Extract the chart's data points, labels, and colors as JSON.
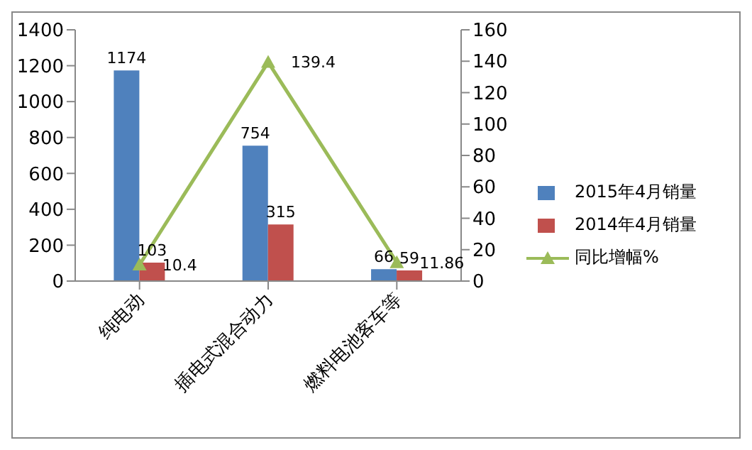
{
  "chart_data": {
    "type": "bar",
    "categories": [
      "纯电动",
      "插电式混合动力",
      "燃料电池客车等"
    ],
    "series": [
      {
        "name": "2015年4月销量",
        "color": "#4f81bd",
        "values": [
          1174,
          754,
          66
        ]
      },
      {
        "name": "2014年4月销量",
        "color": "#c0504d",
        "values": [
          103,
          315,
          59
        ]
      },
      {
        "name": "同比增幅%",
        "type": "line",
        "axis": "y2",
        "color": "#9bbb59",
        "values": [
          10.4,
          139.4,
          11.86
        ]
      }
    ],
    "ylim": [
      0,
      1400
    ],
    "yticks": [
      0,
      200,
      400,
      600,
      800,
      1000,
      1200,
      1400
    ],
    "y2lim": [
      0,
      160
    ],
    "y2ticks": [
      0,
      20,
      40,
      60,
      80,
      100,
      120,
      140,
      160
    ],
    "data_labels": true,
    "grid": false,
    "legend": "right",
    "marker": "triangle"
  }
}
